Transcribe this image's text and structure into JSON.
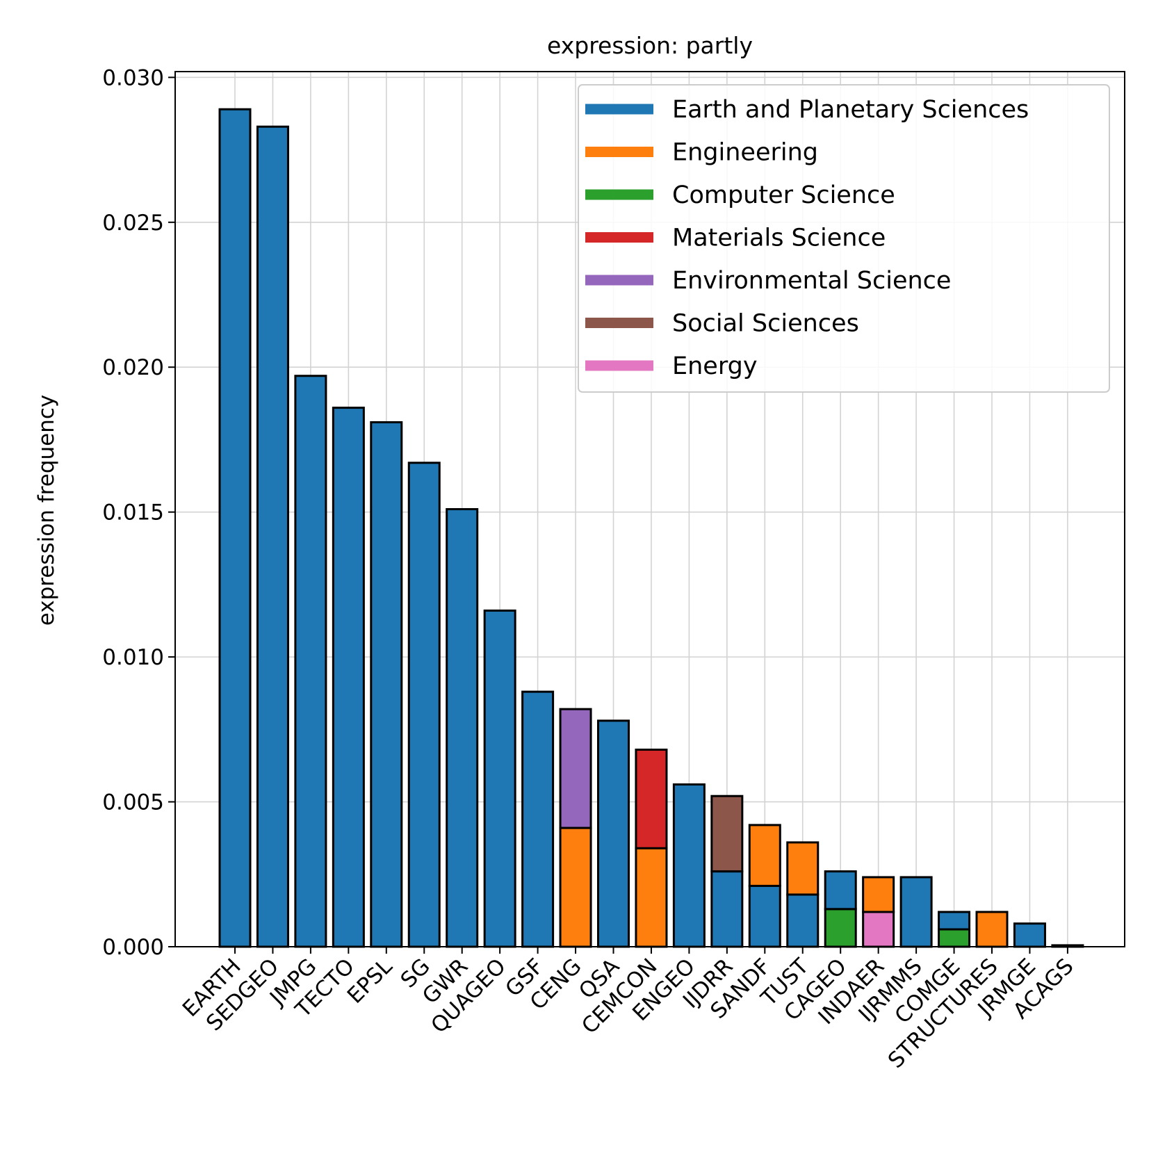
{
  "chart_data": {
    "type": "bar",
    "title": "expression: partly",
    "xlabel": "",
    "ylabel": "expression frequency",
    "ylim": [
      0,
      0.0302
    ],
    "yticks": [
      "0.000",
      "0.005",
      "0.010",
      "0.015",
      "0.020",
      "0.025",
      "0.030"
    ],
    "grid": true,
    "legend_position": "top-right",
    "stacked": true,
    "categories": [
      "EARTH",
      "SEDGEO",
      "JMPG",
      "TECTO",
      "EPSL",
      "SG",
      "GWR",
      "QUAGEO",
      "GSF",
      "CENG",
      "QSA",
      "CEMCON",
      "ENGEO",
      "IJDRR",
      "SANDF",
      "TUST",
      "CAGEO",
      "INDAER",
      "IJRMMS",
      "COMGE",
      "STRUCTURES",
      "JRMGE",
      "ACAGS"
    ],
    "series": [
      {
        "name": "Earth and Planetary Sciences",
        "color": "#1f77b4",
        "values": [
          0.0289,
          0.0283,
          0.0197,
          0.0186,
          0.0181,
          0.0167,
          0.0151,
          0.0116,
          0.0088,
          0,
          0.0078,
          0,
          0.0056,
          0.0026,
          0.0021,
          0.0018,
          0.0013,
          0,
          0.0024,
          0.0006,
          0,
          0.0008,
          5e-05
        ]
      },
      {
        "name": "Engineering",
        "color": "#ff7f0e",
        "values": [
          0,
          0,
          0,
          0,
          0,
          0,
          0,
          0,
          0,
          0.0041,
          0,
          0.0034,
          0,
          0,
          0.0021,
          0.0018,
          0,
          0.0012,
          0,
          0,
          0.0012,
          0,
          0
        ]
      },
      {
        "name": "Computer Science",
        "color": "#2ca02c",
        "values": [
          0,
          0,
          0,
          0,
          0,
          0,
          0,
          0,
          0,
          0,
          0,
          0,
          0,
          0,
          0,
          0,
          0.0013,
          0,
          0,
          0.0006,
          0,
          0,
          0
        ]
      },
      {
        "name": "Materials Science",
        "color": "#d62728",
        "values": [
          0,
          0,
          0,
          0,
          0,
          0,
          0,
          0,
          0,
          0,
          0,
          0.0034,
          0,
          0,
          0,
          0,
          0,
          0,
          0,
          0,
          0,
          0,
          0
        ]
      },
      {
        "name": "Environmental Science",
        "color": "#9467bd",
        "values": [
          0,
          0,
          0,
          0,
          0,
          0,
          0,
          0,
          0,
          0.0041,
          0,
          0,
          0,
          0,
          0,
          0,
          0,
          0,
          0,
          0,
          0,
          0,
          0
        ]
      },
      {
        "name": "Social Sciences",
        "color": "#8c564b",
        "values": [
          0,
          0,
          0,
          0,
          0,
          0,
          0,
          0,
          0,
          0,
          0,
          0,
          0,
          0.0026,
          0,
          0,
          0,
          0,
          0,
          0,
          0,
          0,
          0
        ]
      },
      {
        "name": "Energy",
        "color": "#e377c2",
        "values": [
          0,
          0,
          0,
          0,
          0,
          0,
          0,
          0,
          0,
          0,
          0,
          0,
          0,
          0,
          0,
          0,
          0,
          0.0012,
          0,
          0,
          0,
          0,
          0
        ]
      }
    ],
    "stack_order": [
      [
        "Earth and Planetary Sciences"
      ],
      [
        "Earth and Planetary Sciences"
      ],
      [
        "Earth and Planetary Sciences"
      ],
      [
        "Earth and Planetary Sciences"
      ],
      [
        "Earth and Planetary Sciences"
      ],
      [
        "Earth and Planetary Sciences"
      ],
      [
        "Earth and Planetary Sciences"
      ],
      [
        "Earth and Planetary Sciences"
      ],
      [
        "Earth and Planetary Sciences"
      ],
      [
        "Engineering",
        "Environmental Science"
      ],
      [
        "Earth and Planetary Sciences"
      ],
      [
        "Engineering",
        "Materials Science"
      ],
      [
        "Earth and Planetary Sciences"
      ],
      [
        "Earth and Planetary Sciences",
        "Social Sciences"
      ],
      [
        "Earth and Planetary Sciences",
        "Engineering"
      ],
      [
        "Earth and Planetary Sciences",
        "Engineering"
      ],
      [
        "Computer Science",
        "Earth and Planetary Sciences"
      ],
      [
        "Energy",
        "Engineering"
      ],
      [
        "Earth and Planetary Sciences"
      ],
      [
        "Computer Science",
        "Earth and Planetary Sciences"
      ],
      [
        "Engineering"
      ],
      [
        "Earth and Planetary Sciences"
      ],
      [
        "Earth and Planetary Sciences"
      ]
    ]
  }
}
